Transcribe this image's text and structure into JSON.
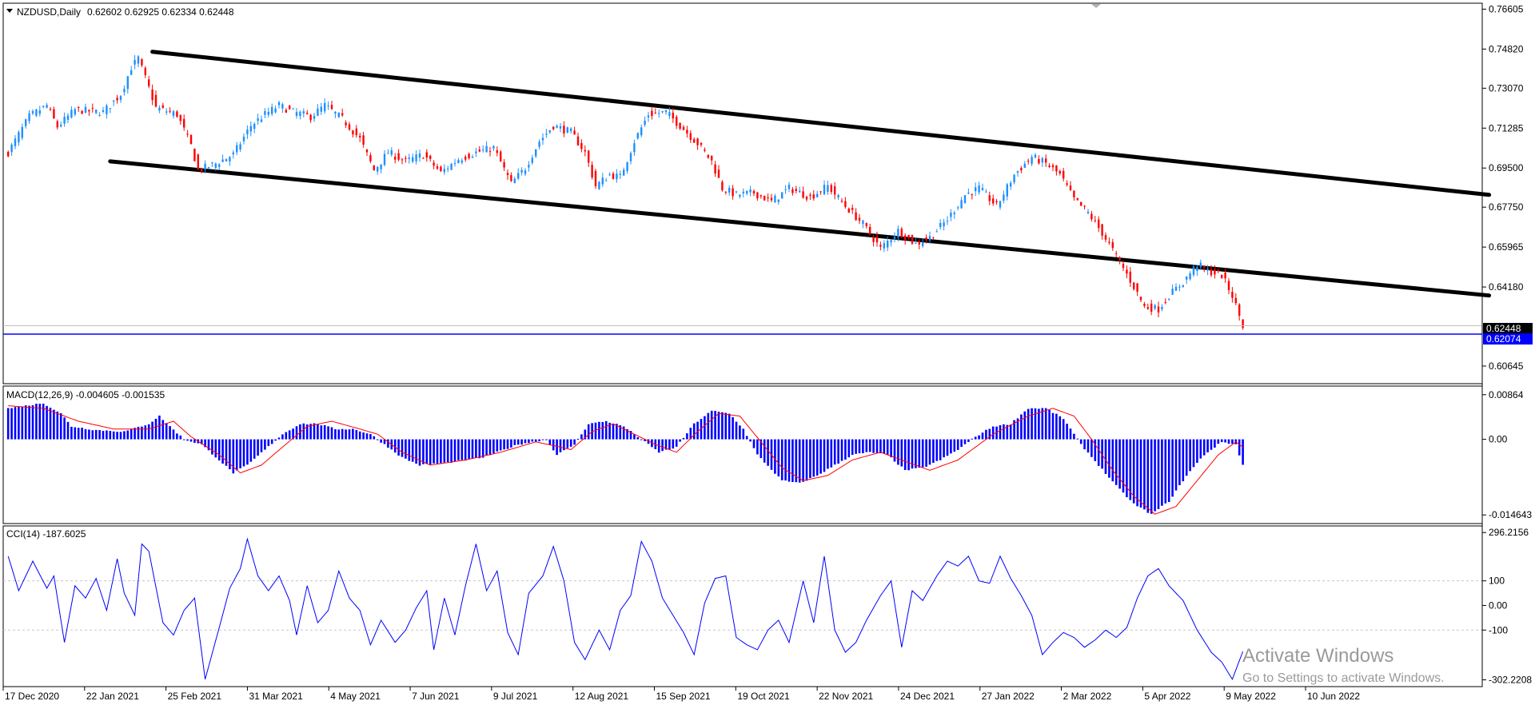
{
  "header": {
    "symbol": "NZDUSD,Daily",
    "ohlc": "0.62602 0.62925 0.62334 0.62448"
  },
  "colors": {
    "bull": "#1e90ff",
    "bear": "#ff0000",
    "macd_hist": "#0000ff",
    "macd_signal": "#ff0000",
    "cci_line": "#0000ff",
    "support_line": "#0000ff",
    "channel": "#000000"
  },
  "price_labels": {
    "current": "0.62448",
    "support": "0.62074"
  },
  "chart_data": [
    {
      "type": "candlestick",
      "ylim": [
        0.6,
        0.768
      ],
      "y_ticks": [
        "0.76605",
        "0.74820",
        "0.73070",
        "0.71285",
        "0.69500",
        "0.67750",
        "0.65965",
        "0.64180",
        "0.62448",
        "0.60645"
      ],
      "x_ticks": [
        "17 Dec 2020",
        "22 Jan 2021",
        "25 Feb 2021",
        "31 Mar 2021",
        "4 May 2021",
        "7 Jun 2021",
        "9 Jul 2021",
        "12 Aug 2021",
        "15 Sep 2021",
        "19 Oct 2021",
        "22 Nov 2021",
        "24 Dec 2021",
        "27 Jan 2022",
        "2 Mar 2022",
        "5 Apr 2022",
        "9 May 2022",
        "10 Jun 2022"
      ],
      "close_path": [
        [
          0,
          0.702
        ],
        [
          6,
          0.718
        ],
        [
          11,
          0.723
        ],
        [
          14,
          0.7135
        ],
        [
          19,
          0.721
        ],
        [
          27,
          0.72
        ],
        [
          32,
          0.728
        ],
        [
          35,
          0.74
        ],
        [
          37,
          0.744
        ],
        [
          42,
          0.722
        ],
        [
          48,
          0.719
        ],
        [
          52,
          0.705
        ],
        [
          54,
          0.694
        ],
        [
          59,
          0.697
        ],
        [
          64,
          0.701
        ],
        [
          69,
          0.714
        ],
        [
          73,
          0.719
        ],
        [
          77,
          0.723
        ],
        [
          81,
          0.72
        ],
        [
          86,
          0.718
        ],
        [
          90,
          0.723
        ],
        [
          95,
          0.717
        ],
        [
          100,
          0.708
        ],
        [
          104,
          0.694
        ],
        [
          108,
          0.702
        ],
        [
          113,
          0.698
        ],
        [
          118,
          0.701
        ],
        [
          123,
          0.693
        ],
        [
          128,
          0.699
        ],
        [
          133,
          0.702
        ],
        [
          138,
          0.704
        ],
        [
          143,
          0.688
        ],
        [
          147,
          0.695
        ],
        [
          151,
          0.707
        ],
        [
          155,
          0.714
        ],
        [
          160,
          0.711
        ],
        [
          164,
          0.702
        ],
        [
          167,
          0.687
        ],
        [
          171,
          0.692
        ],
        [
          174,
          0.691
        ],
        [
          178,
          0.707
        ],
        [
          182,
          0.719
        ],
        [
          187,
          0.72
        ],
        [
          191,
          0.714
        ],
        [
          196,
          0.706
        ],
        [
          200,
          0.698
        ],
        [
          203,
          0.686
        ],
        [
          207,
          0.683
        ],
        [
          212,
          0.684
        ],
        [
          217,
          0.68
        ],
        [
          222,
          0.686
        ],
        [
          228,
          0.682
        ],
        [
          233,
          0.687
        ],
        [
          238,
          0.678
        ],
        [
          243,
          0.67
        ],
        [
          248,
          0.659
        ],
        [
          253,
          0.667
        ],
        [
          258,
          0.661
        ],
        [
          262,
          0.664
        ],
        [
          267,
          0.672
        ],
        [
          272,
          0.683
        ],
        [
          276,
          0.686
        ],
        [
          281,
          0.678
        ],
        [
          286,
          0.692
        ],
        [
          291,
          0.7
        ],
        [
          295,
          0.697
        ],
        [
          299,
          0.692
        ],
        [
          303,
          0.681
        ],
        [
          307,
          0.675
        ],
        [
          311,
          0.666
        ],
        [
          316,
          0.653
        ],
        [
          320,
          0.642
        ],
        [
          323,
          0.633
        ],
        [
          327,
          0.632
        ],
        [
          330,
          0.638
        ],
        [
          334,
          0.644
        ],
        [
          338,
          0.652
        ],
        [
          341,
          0.649
        ],
        [
          345,
          0.647
        ],
        [
          348,
          0.638
        ],
        [
          351,
          0.6245
        ]
      ],
      "channel_lines": [
        {
          "x": [
            41,
            421
          ],
          "y": [
            0.747,
            0.683
          ]
        },
        {
          "x": [
            29,
            421
          ],
          "y": [
            0.698,
            0.638
          ]
        }
      ],
      "support_level": 0.62074
    },
    {
      "type": "bar",
      "title": "MACD(12,26,9) -0.004605 -0.001535",
      "ylim": [
        -0.016,
        0.01
      ],
      "y_ticks": [
        "0.00864",
        "0.00",
        "-0.014643"
      ],
      "hist_path": [
        [
          0,
          0.006
        ],
        [
          10,
          0.007
        ],
        [
          15,
          0.005
        ],
        [
          18,
          0.0025
        ],
        [
          25,
          0.0018
        ],
        [
          33,
          0.0015
        ],
        [
          40,
          0.003
        ],
        [
          43,
          0.0045
        ],
        [
          46,
          0.0025
        ],
        [
          50,
          0.0
        ],
        [
          55,
          -0.001
        ],
        [
          60,
          -0.004
        ],
        [
          64,
          -0.0065
        ],
        [
          68,
          -0.005
        ],
        [
          73,
          -0.002
        ],
        [
          78,
          0.001
        ],
        [
          83,
          0.003
        ],
        [
          88,
          0.003
        ],
        [
          93,
          0.002
        ],
        [
          98,
          0.002
        ],
        [
          103,
          0.001
        ],
        [
          107,
          -0.001
        ],
        [
          112,
          -0.0035
        ],
        [
          117,
          -0.005
        ],
        [
          125,
          -0.0045
        ],
        [
          135,
          -0.0035
        ],
        [
          145,
          -0.001
        ],
        [
          153,
          0.0
        ],
        [
          156,
          -0.003
        ],
        [
          161,
          -0.001
        ],
        [
          165,
          0.003
        ],
        [
          170,
          0.0035
        ],
        [
          175,
          0.0025
        ],
        [
          180,
          0.0
        ],
        [
          185,
          -0.0025
        ],
        [
          190,
          -0.0015
        ],
        [
          195,
          0.003
        ],
        [
          200,
          0.0055
        ],
        [
          205,
          0.005
        ],
        [
          209,
          0.002
        ],
        [
          213,
          -0.003
        ],
        [
          220,
          -0.008
        ],
        [
          225,
          -0.0085
        ],
        [
          230,
          -0.007
        ],
        [
          235,
          -0.005
        ],
        [
          240,
          -0.003
        ],
        [
          245,
          -0.0025
        ],
        [
          250,
          -0.003
        ],
        [
          255,
          -0.006
        ],
        [
          260,
          -0.0055
        ],
        [
          265,
          -0.004
        ],
        [
          270,
          -0.002
        ],
        [
          275,
          0.0005
        ],
        [
          280,
          0.0025
        ],
        [
          285,
          0.003
        ],
        [
          290,
          0.006
        ],
        [
          295,
          0.006
        ],
        [
          300,
          0.004
        ],
        [
          305,
          -0.001
        ],
        [
          310,
          -0.005
        ],
        [
          315,
          -0.009
        ],
        [
          320,
          -0.0125
        ],
        [
          325,
          -0.0145
        ],
        [
          330,
          -0.012
        ],
        [
          335,
          -0.007
        ],
        [
          340,
          -0.003
        ],
        [
          345,
          -0.0005
        ],
        [
          349,
          -0.001
        ],
        [
          351,
          -0.005
        ]
      ],
      "signal_path": [
        [
          0,
          0.0065
        ],
        [
          10,
          0.006
        ],
        [
          20,
          0.0035
        ],
        [
          30,
          0.002
        ],
        [
          40,
          0.002
        ],
        [
          47,
          0.0035
        ],
        [
          52,
          0.0005
        ],
        [
          60,
          -0.003
        ],
        [
          66,
          -0.0065
        ],
        [
          72,
          -0.005
        ],
        [
          78,
          -0.0015
        ],
        [
          85,
          0.0025
        ],
        [
          92,
          0.0035
        ],
        [
          100,
          0.002
        ],
        [
          105,
          0.001
        ],
        [
          112,
          -0.0025
        ],
        [
          120,
          -0.005
        ],
        [
          130,
          -0.004
        ],
        [
          140,
          -0.0025
        ],
        [
          150,
          -0.0005
        ],
        [
          155,
          -0.0012
        ],
        [
          160,
          -0.002
        ],
        [
          166,
          0.0015
        ],
        [
          172,
          0.003
        ],
        [
          178,
          0.001
        ],
        [
          184,
          -0.001
        ],
        [
          190,
          -0.0025
        ],
        [
          196,
          0.0015
        ],
        [
          202,
          0.005
        ],
        [
          208,
          0.0045
        ],
        [
          214,
          -0.0005
        ],
        [
          220,
          -0.0055
        ],
        [
          226,
          -0.008
        ],
        [
          233,
          -0.007
        ],
        [
          240,
          -0.004
        ],
        [
          248,
          -0.0025
        ],
        [
          256,
          -0.0045
        ],
        [
          262,
          -0.006
        ],
        [
          270,
          -0.004
        ],
        [
          280,
          0.001
        ],
        [
          290,
          0.0045
        ],
        [
          297,
          0.006
        ],
        [
          303,
          0.0045
        ],
        [
          308,
          0.0
        ],
        [
          314,
          -0.006
        ],
        [
          320,
          -0.011
        ],
        [
          326,
          -0.0145
        ],
        [
          332,
          -0.013
        ],
        [
          338,
          -0.008
        ],
        [
          344,
          -0.003
        ],
        [
          349,
          -0.0005
        ],
        [
          351,
          -0.0015
        ]
      ]
    },
    {
      "type": "line",
      "title": "CCI(14) -187.6025",
      "ylim": [
        -320,
        310
      ],
      "y_ticks": [
        "296.2156",
        "100",
        "0.00",
        "-100",
        "-302.2208"
      ],
      "levels": [
        100,
        -100
      ],
      "line_path": [
        [
          0,
          200
        ],
        [
          3,
          60
        ],
        [
          7,
          180
        ],
        [
          11,
          70
        ],
        [
          13,
          120
        ],
        [
          16,
          -150
        ],
        [
          19,
          80
        ],
        [
          22,
          30
        ],
        [
          25,
          110
        ],
        [
          28,
          -20
        ],
        [
          31,
          190
        ],
        [
          33,
          50
        ],
        [
          36,
          -40
        ],
        [
          38,
          250
        ],
        [
          40,
          220
        ],
        [
          44,
          -70
        ],
        [
          47,
          -120
        ],
        [
          50,
          -20
        ],
        [
          53,
          30
        ],
        [
          56,
          -300
        ],
        [
          60,
          -90
        ],
        [
          63,
          70
        ],
        [
          66,
          150
        ],
        [
          68,
          270
        ],
        [
          71,
          120
        ],
        [
          74,
          60
        ],
        [
          77,
          120
        ],
        [
          80,
          20
        ],
        [
          82,
          -120
        ],
        [
          85,
          80
        ],
        [
          88,
          -70
        ],
        [
          91,
          -20
        ],
        [
          94,
          140
        ],
        [
          97,
          30
        ],
        [
          100,
          -20
        ],
        [
          103,
          -160
        ],
        [
          106,
          -60
        ],
        [
          110,
          -150
        ],
        [
          113,
          -100
        ],
        [
          116,
          -10
        ],
        [
          119,
          60
        ],
        [
          121,
          -180
        ],
        [
          124,
          30
        ],
        [
          127,
          -120
        ],
        [
          130,
          80
        ],
        [
          133,
          250
        ],
        [
          136,
          60
        ],
        [
          139,
          140
        ],
        [
          142,
          -110
        ],
        [
          145,
          -200
        ],
        [
          148,
          50
        ],
        [
          152,
          120
        ],
        [
          155,
          240
        ],
        [
          158,
          100
        ],
        [
          161,
          -150
        ],
        [
          164,
          -220
        ],
        [
          168,
          -100
        ],
        [
          171,
          -180
        ],
        [
          174,
          -20
        ],
        [
          177,
          40
        ],
        [
          180,
          260
        ],
        [
          183,
          180
        ],
        [
          186,
          30
        ],
        [
          189,
          -40
        ],
        [
          192,
          -110
        ],
        [
          195,
          -200
        ],
        [
          198,
          10
        ],
        [
          201,
          110
        ],
        [
          204,
          120
        ],
        [
          207,
          -130
        ],
        [
          210,
          -160
        ],
        [
          213,
          -180
        ],
        [
          216,
          -100
        ],
        [
          219,
          -60
        ],
        [
          222,
          -150
        ],
        [
          226,
          100
        ],
        [
          229,
          -70
        ],
        [
          232,
          200
        ],
        [
          235,
          -100
        ],
        [
          238,
          -190
        ],
        [
          241,
          -150
        ],
        [
          244,
          -60
        ],
        [
          248,
          40
        ],
        [
          251,
          100
        ],
        [
          254,
          -170
        ],
        [
          257,
          60
        ],
        [
          260,
          20
        ],
        [
          264,
          120
        ],
        [
          267,
          180
        ],
        [
          270,
          160
        ],
        [
          273,
          200
        ],
        [
          276,
          100
        ],
        [
          279,
          90
        ],
        [
          282,
          200
        ],
        [
          285,
          110
        ],
        [
          288,
          40
        ],
        [
          291,
          -40
        ],
        [
          294,
          -200
        ],
        [
          297,
          -150
        ],
        [
          300,
          -110
        ],
        [
          303,
          -130
        ],
        [
          306,
          -170
        ],
        [
          309,
          -140
        ],
        [
          312,
          -100
        ],
        [
          315,
          -130
        ],
        [
          318,
          -90
        ],
        [
          321,
          30
        ],
        [
          324,
          120
        ],
        [
          327,
          150
        ],
        [
          330,
          80
        ],
        [
          334,
          20
        ],
        [
          338,
          -100
        ],
        [
          342,
          -190
        ],
        [
          345,
          -230
        ],
        [
          348,
          -300
        ],
        [
          351,
          -187
        ]
      ]
    }
  ],
  "watermark": {
    "line1": "Activate Windows",
    "line2": "Go to Settings to activate Windows."
  }
}
